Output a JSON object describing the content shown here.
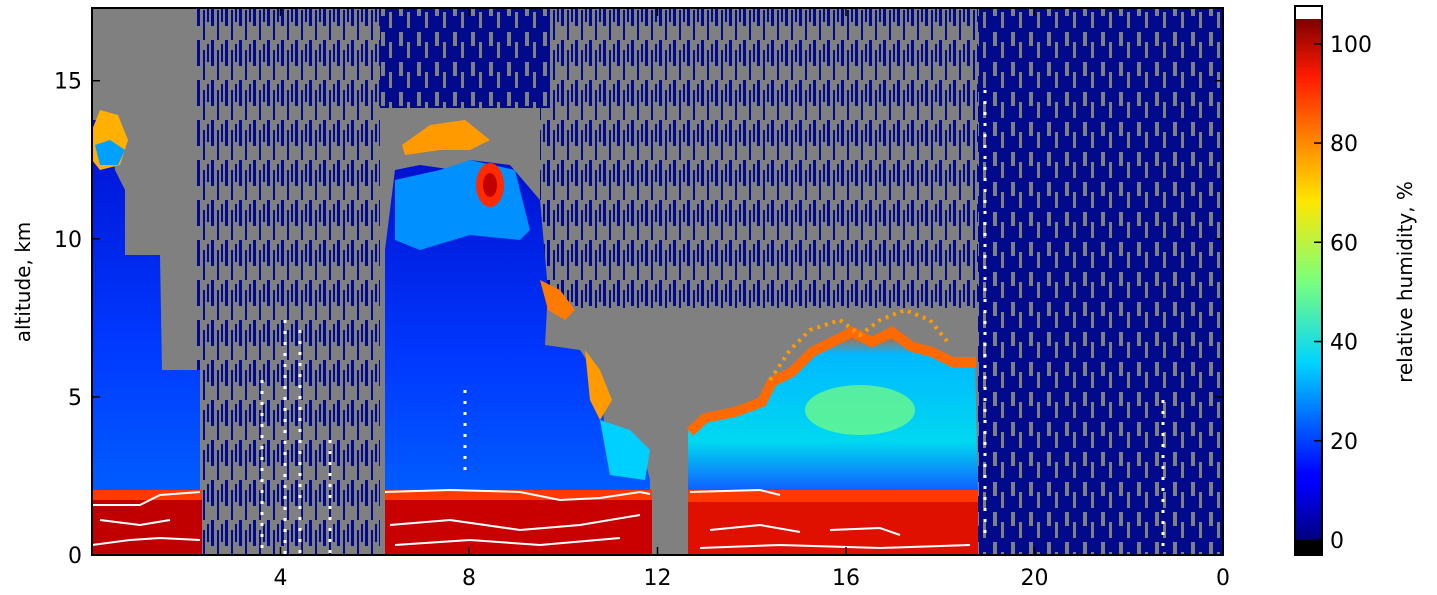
{
  "chart_data": {
    "type": "heatmap",
    "title": "",
    "xlabel": "",
    "ylabel": "altitude, km",
    "x_tick_labels": [
      "4",
      "8",
      "12",
      "16",
      "20",
      "0"
    ],
    "y_ticks": [
      0,
      5,
      10,
      15
    ],
    "ylim": [
      0,
      17.3
    ],
    "missing_value_color": "#808080",
    "contour_color": "#ffffff",
    "colorbar": {
      "label": "relative humidity, %",
      "ticks": [
        0,
        20,
        40,
        60,
        80,
        100
      ],
      "range": [
        0,
        105
      ],
      "colormap": "jet",
      "over_color": "#ffffff",
      "under_color": "#000000"
    },
    "regions": [
      {
        "x_start": 0,
        "x_end": 2.4,
        "surface_rh_percent": 100,
        "dry_layer_top_km": 9.5,
        "moist_layer_top_km": 2.1,
        "upper_cloud_km": [
          12.5,
          14.2
        ]
      },
      {
        "x_start": 2.4,
        "x_end": 6.3,
        "status": "mostly missing data"
      },
      {
        "x_start": 6.3,
        "x_end": 12.0,
        "surface_rh_percent": 100,
        "dry_layer_top_km": 10.5,
        "moist_layer_top_km": 2.1,
        "upper_cloud_km": [
          11,
          13.5
        ]
      },
      {
        "x_start": 12.0,
        "x_end": 12.6,
        "status": "missing data"
      },
      {
        "x_start": 12.6,
        "x_end": 19.0,
        "surface_rh_percent": 95,
        "moist_layer_top_km": 2.1,
        "cloud_top_km": 6.5,
        "mid_rh_percent": 30
      },
      {
        "x_start": 19.0,
        "x_end": 24.0,
        "status": "mostly missing data"
      }
    ]
  }
}
